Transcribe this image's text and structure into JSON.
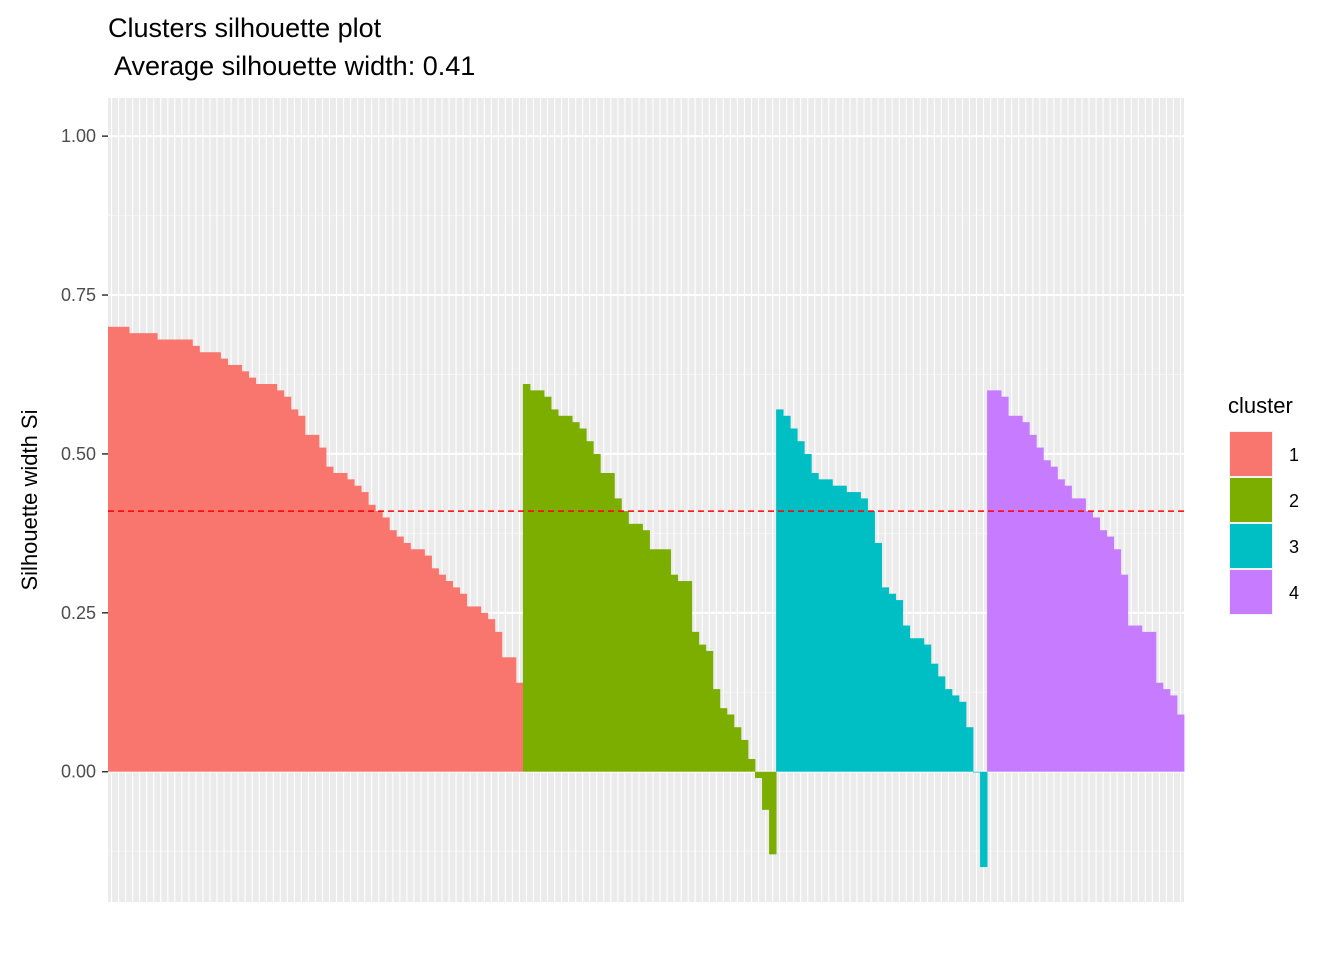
{
  "chart_data": {
    "type": "bar",
    "title": "Clusters silhouette plot",
    "subtitle": " Average silhouette width: 0.41",
    "xlabel": "",
    "ylabel": "Silhouette width Si",
    "ylim": [
      -0.205,
      1.06
    ],
    "yticks": [
      "0.00",
      "0.25",
      "0.50",
      "0.75",
      "1.00"
    ],
    "ytick_values": [
      0,
      0.25,
      0.5,
      0.75,
      1.0
    ],
    "average_line": 0.41,
    "average_line_color": "#FF0000",
    "grid": true,
    "background": "#EBEBEB",
    "legend": {
      "title": "cluster",
      "position": "right",
      "labels": [
        "1",
        "2",
        "3",
        "4"
      ]
    },
    "series": [
      {
        "name": "1",
        "color": "#F8766D",
        "values": [
          0.7,
          0.7,
          0.7,
          0.69,
          0.69,
          0.69,
          0.69,
          0.68,
          0.68,
          0.68,
          0.68,
          0.68,
          0.67,
          0.66,
          0.66,
          0.66,
          0.65,
          0.64,
          0.64,
          0.63,
          0.62,
          0.61,
          0.61,
          0.61,
          0.6,
          0.59,
          0.57,
          0.56,
          0.53,
          0.53,
          0.51,
          0.48,
          0.47,
          0.47,
          0.46,
          0.45,
          0.44,
          0.42,
          0.41,
          0.4,
          0.38,
          0.37,
          0.36,
          0.35,
          0.35,
          0.34,
          0.32,
          0.31,
          0.3,
          0.29,
          0.28,
          0.26,
          0.26,
          0.25,
          0.24,
          0.22,
          0.18,
          0.18,
          0.14
        ]
      },
      {
        "name": "2",
        "color": "#7CAE00",
        "values": [
          0.61,
          0.6,
          0.6,
          0.59,
          0.57,
          0.56,
          0.56,
          0.55,
          0.54,
          0.52,
          0.5,
          0.47,
          0.47,
          0.43,
          0.41,
          0.39,
          0.39,
          0.38,
          0.35,
          0.35,
          0.35,
          0.31,
          0.3,
          0.3,
          0.22,
          0.2,
          0.19,
          0.13,
          0.1,
          0.09,
          0.07,
          0.05,
          0.02,
          -0.01,
          -0.06,
          -0.13
        ]
      },
      {
        "name": "3",
        "color": "#00BFC4",
        "values": [
          0.57,
          0.56,
          0.54,
          0.52,
          0.5,
          0.47,
          0.46,
          0.46,
          0.45,
          0.45,
          0.44,
          0.44,
          0.43,
          0.41,
          0.36,
          0.29,
          0.28,
          0.27,
          0.23,
          0.21,
          0.21,
          0.2,
          0.17,
          0.15,
          0.13,
          0.12,
          0.11,
          0.07,
          0.0,
          -0.15
        ]
      },
      {
        "name": "4",
        "color": "#C77CFF",
        "values": [
          0.6,
          0.6,
          0.59,
          0.56,
          0.56,
          0.55,
          0.53,
          0.51,
          0.49,
          0.48,
          0.46,
          0.45,
          0.43,
          0.43,
          0.41,
          0.4,
          0.38,
          0.37,
          0.35,
          0.31,
          0.23,
          0.23,
          0.22,
          0.22,
          0.14,
          0.13,
          0.12,
          0.09
        ]
      }
    ]
  }
}
